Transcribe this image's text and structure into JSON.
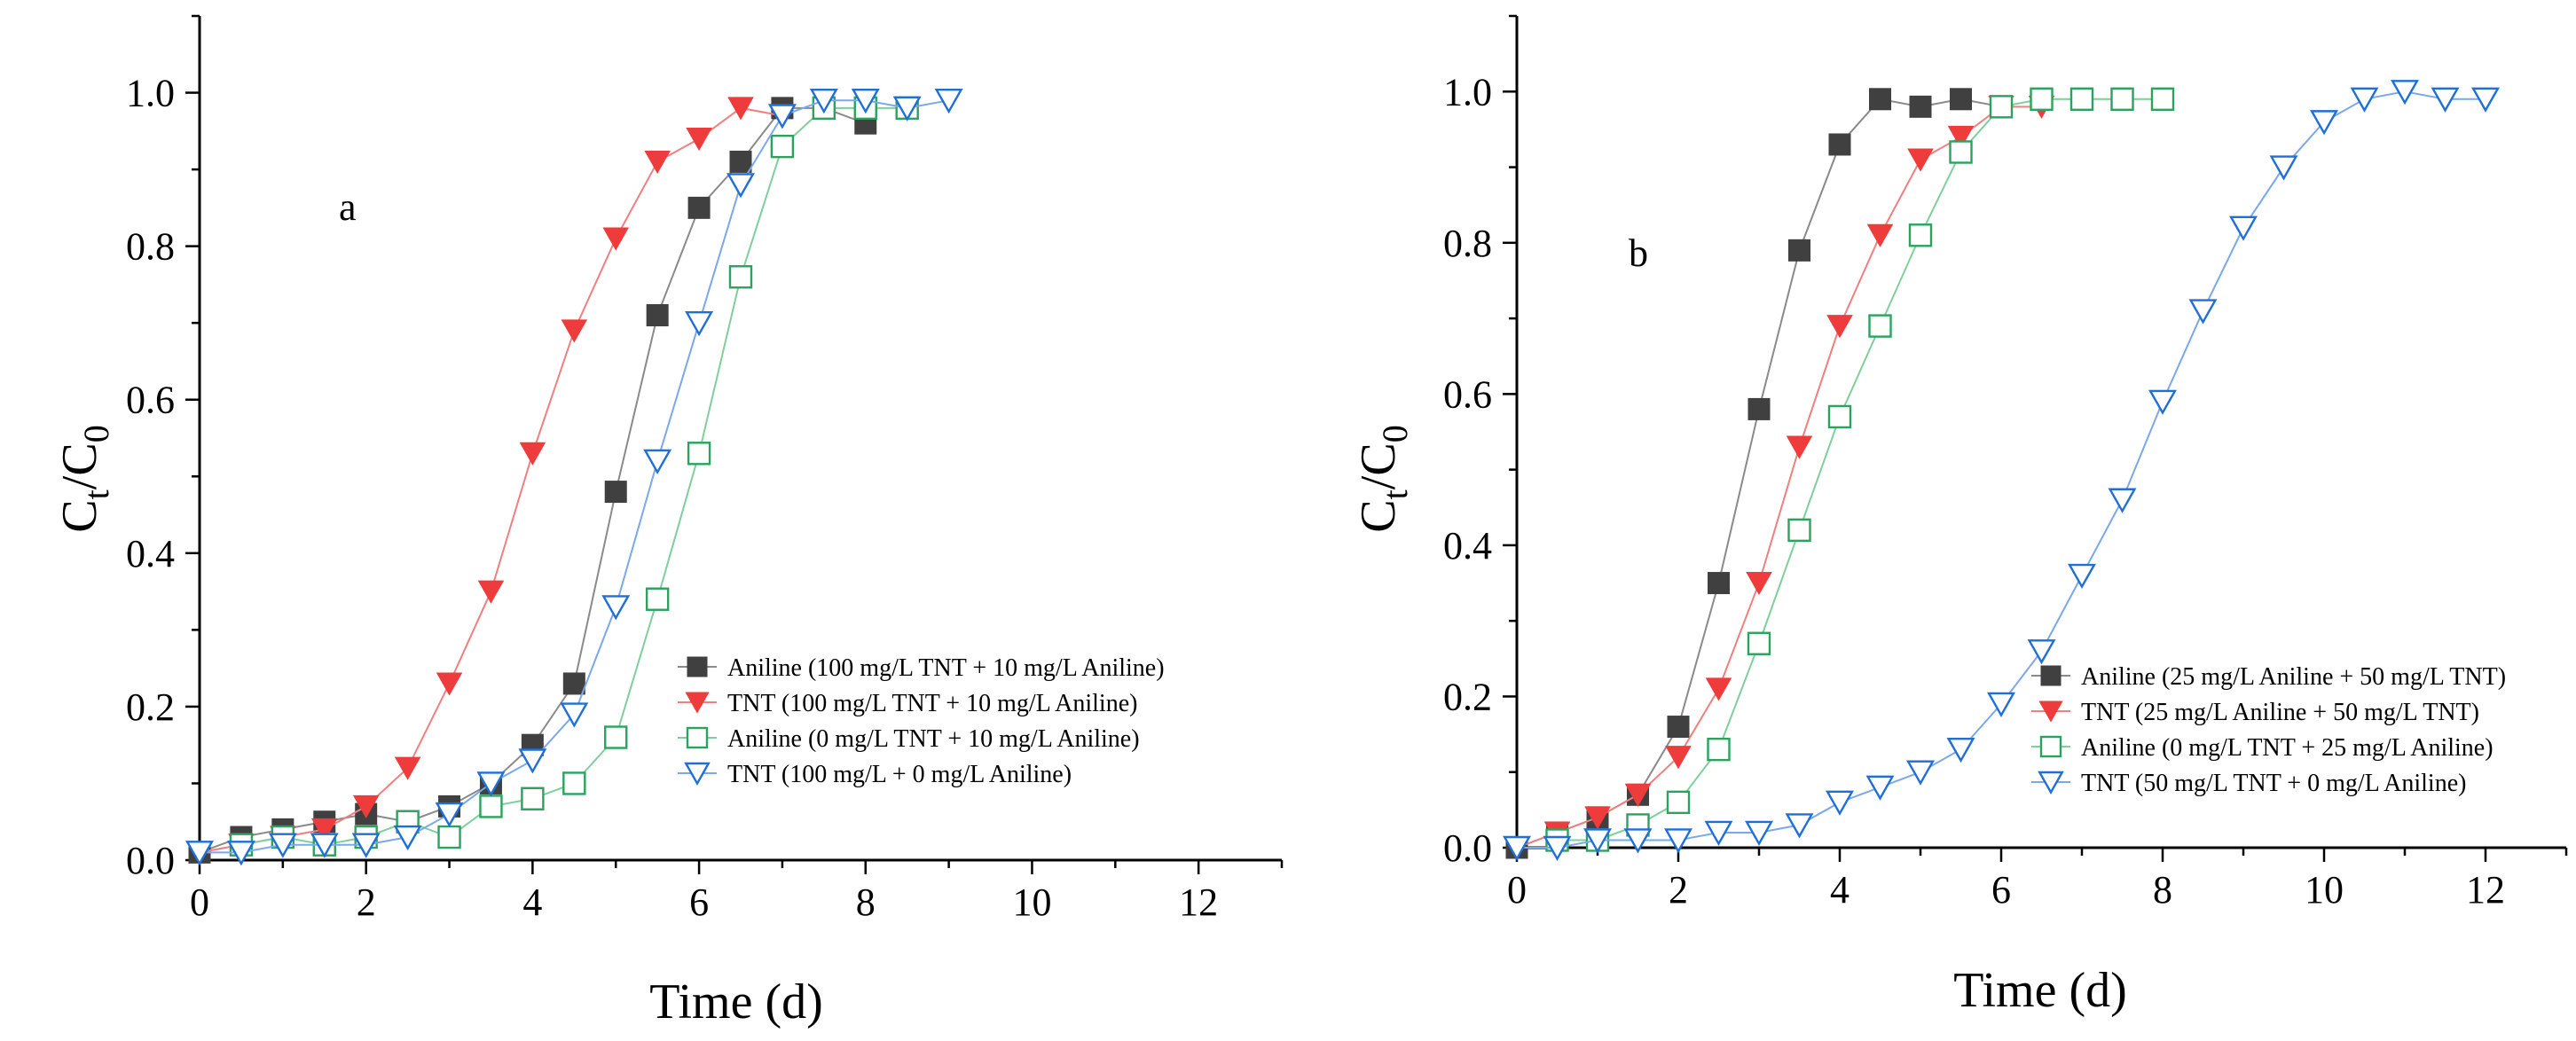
{
  "chart_data": [
    {
      "type": "line",
      "panel_label": "a",
      "xlabel": "Time (d)",
      "ylabel_main": "C",
      "ylabel_sub1": "t",
      "ylabel_slash": "/C",
      "ylabel_sub2": "0",
      "xlim": [
        0,
        13
      ],
      "ylim": [
        0,
        1.1
      ],
      "xticks": [
        0,
        2,
        4,
        6,
        8,
        10,
        12
      ],
      "xtick_labels": [
        "0",
        "2",
        "4",
        "6",
        "8",
        "10",
        "12"
      ],
      "yticks": [
        0,
        0.2,
        0.4,
        0.6,
        0.8,
        1.0
      ],
      "ytick_labels": [
        "0.0",
        "0.2",
        "0.4",
        "0.6",
        "0.8",
        "1.0"
      ],
      "legend_position": "lower-right",
      "series": [
        {
          "name": "Aniline (100 mg/L TNT + 10 mg/L Aniline)",
          "marker": "square-filled",
          "color": "#404040",
          "line_color": "#8a8a8a",
          "x": [
            0,
            0.5,
            1,
            1.5,
            2,
            2.5,
            3,
            3.5,
            4,
            4.5,
            5,
            5.5,
            6,
            6.5,
            7,
            7.5,
            8
          ],
          "y": [
            0.01,
            0.03,
            0.04,
            0.05,
            0.06,
            0.05,
            0.07,
            0.1,
            0.15,
            0.23,
            0.48,
            0.71,
            0.85,
            0.91,
            0.98,
            0.98,
            0.96
          ]
        },
        {
          "name": "TNT (100 mg/L TNT + 10 mg/L Aniline)",
          "marker": "triangle-down-filled",
          "color": "#ee3b3b",
          "line_color": "#f08080",
          "x": [
            0,
            0.5,
            1,
            1.5,
            2,
            2.5,
            3,
            3.5,
            4,
            4.5,
            5,
            5.5,
            6,
            6.5,
            7
          ],
          "y": [
            0.01,
            0.02,
            0.03,
            0.04,
            0.07,
            0.12,
            0.23,
            0.35,
            0.53,
            0.69,
            0.81,
            0.91,
            0.94,
            0.98,
            0.97
          ]
        },
        {
          "name": "Aniline (0 mg/L TNT + 10 mg/L Aniline)",
          "marker": "square-open",
          "color": "#2ca25f",
          "line_color": "#7fcf9c",
          "x": [
            0.5,
            1,
            1.5,
            2,
            2.5,
            3,
            3.5,
            4,
            4.5,
            5,
            5.5,
            6,
            6.5,
            7,
            7.5,
            8,
            8.5
          ],
          "y": [
            0.02,
            0.03,
            0.02,
            0.03,
            0.05,
            0.03,
            0.07,
            0.08,
            0.1,
            0.16,
            0.34,
            0.53,
            0.76,
            0.93,
            0.98,
            0.98,
            0.98
          ]
        },
        {
          "name": "TNT (100 mg/L + 0 mg/L Aniline)",
          "marker": "triangle-down-open",
          "color": "#1f6fd6",
          "line_color": "#7aa8ea",
          "x": [
            0,
            0.5,
            1,
            1.5,
            2,
            2.5,
            3,
            3.5,
            4,
            4.5,
            5,
            5.5,
            6,
            6.5,
            7,
            7.5,
            8,
            8.5,
            9
          ],
          "y": [
            0.01,
            0.01,
            0.02,
            0.02,
            0.02,
            0.03,
            0.06,
            0.1,
            0.13,
            0.19,
            0.33,
            0.52,
            0.7,
            0.88,
            0.97,
            0.99,
            0.99,
            0.98,
            0.99
          ]
        }
      ]
    },
    {
      "type": "line",
      "panel_label": "b",
      "xlabel": "Time (d)",
      "ylabel_main": "C",
      "ylabel_sub1": "t",
      "ylabel_slash": "/C",
      "ylabel_sub2": "0",
      "xlim": [
        0,
        13
      ],
      "ylim": [
        0,
        1.1
      ],
      "xticks": [
        0,
        2,
        4,
        6,
        8,
        10,
        12
      ],
      "xtick_labels": [
        "0",
        "2",
        "4",
        "6",
        "8",
        "10",
        "12"
      ],
      "yticks": [
        0,
        0.2,
        0.4,
        0.6,
        0.8,
        1.0
      ],
      "ytick_labels": [
        "0.0",
        "0.2",
        "0.4",
        "0.6",
        "0.8",
        "1.0"
      ],
      "legend_position": "lower-right",
      "series": [
        {
          "name": "Aniline (25 mg/L Aniline + 50 mg/L TNT)",
          "marker": "square-filled",
          "color": "#404040",
          "line_color": "#8a8a8a",
          "x": [
            0,
            0.5,
            1,
            1.5,
            2,
            2.5,
            3,
            3.5,
            4,
            4.5,
            5,
            5.5,
            6
          ],
          "y": [
            0.0,
            0.02,
            0.04,
            0.07,
            0.16,
            0.35,
            0.58,
            0.79,
            0.93,
            0.99,
            0.98,
            0.99,
            0.98
          ]
        },
        {
          "name": "TNT (25 mg/L Aniline + 50 mg/L TNT)",
          "marker": "triangle-down-filled",
          "color": "#ee3b3b",
          "line_color": "#f08080",
          "x": [
            0,
            0.5,
            1,
            1.5,
            2,
            2.5,
            3,
            3.5,
            4,
            4.5,
            5,
            5.5,
            6,
            6.5
          ],
          "y": [
            0.0,
            0.02,
            0.04,
            0.07,
            0.12,
            0.21,
            0.35,
            0.53,
            0.69,
            0.81,
            0.91,
            0.94,
            0.98,
            0.98
          ]
        },
        {
          "name": "Aniline (0 mg/L TNT + 25 mg/L Aniline)",
          "marker": "square-open",
          "color": "#2ca25f",
          "line_color": "#7fcf9c",
          "x": [
            0.5,
            1,
            1.5,
            2,
            2.5,
            3,
            3.5,
            4,
            4.5,
            5,
            5.5,
            6,
            6.5,
            7,
            7.5,
            8
          ],
          "y": [
            0.01,
            0.01,
            0.03,
            0.06,
            0.13,
            0.27,
            0.42,
            0.57,
            0.69,
            0.81,
            0.92,
            0.98,
            0.99,
            0.99,
            0.99,
            0.99
          ]
        },
        {
          "name": "TNT (50 mg/L TNT + 0 mg/L Aniline)",
          "marker": "triangle-down-open",
          "color": "#1f6fd6",
          "line_color": "#7aa8ea",
          "x": [
            0,
            0.5,
            1,
            1.5,
            2,
            2.5,
            3,
            3.5,
            4,
            4.5,
            5,
            5.5,
            6,
            6.5,
            7,
            7.5,
            8,
            8.5,
            9,
            9.5,
            10,
            10.5,
            11,
            11.5,
            12
          ],
          "y": [
            0.0,
            0.0,
            0.01,
            0.01,
            0.01,
            0.02,
            0.02,
            0.03,
            0.06,
            0.08,
            0.1,
            0.13,
            0.19,
            0.26,
            0.36,
            0.46,
            0.59,
            0.71,
            0.82,
            0.9,
            0.96,
            0.99,
            1.0,
            0.99,
            0.99
          ]
        }
      ]
    }
  ]
}
